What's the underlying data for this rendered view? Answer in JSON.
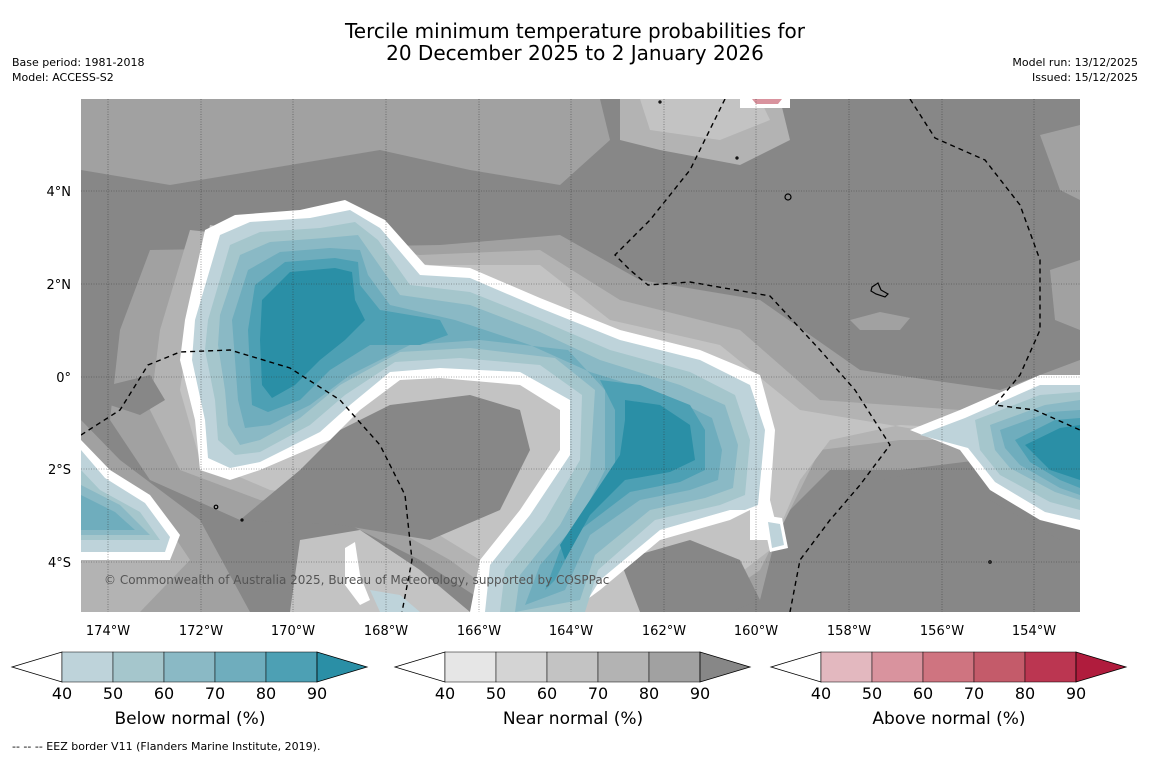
{
  "title": {
    "line1": "Tercile minimum temperature probabilities for",
    "line2": "20 December 2025 to 2 January 2026"
  },
  "meta_left": {
    "base_period": "Base period: 1981-2018",
    "model": "Model: ACCESS-S2"
  },
  "meta_right": {
    "model_run": "Model run: 13/12/2025",
    "issued": "Issued: 15/12/2025"
  },
  "axes": {
    "lon_ticks": [
      "174°W",
      "172°W",
      "170°W",
      "168°W",
      "166°W",
      "164°W",
      "162°W",
      "160°W",
      "158°W",
      "156°W",
      "154°W"
    ],
    "lat_ticks": [
      "4°N",
      "2°N",
      "0°",
      "2°S",
      "4°S"
    ]
  },
  "copyright": "© Commonwealth of Australia 2025, Bureau of Meteorology, supported by COSPPac",
  "colorbars": [
    {
      "label": "Below normal (%)",
      "ticks": [
        "40",
        "50",
        "60",
        "70",
        "80",
        "90"
      ],
      "colors": [
        "#bed3da",
        "#a5c6cc",
        "#8ab9c5",
        "#6fadbd",
        "#4da0b4",
        "#2a8fa6"
      ]
    },
    {
      "label": "Near normal (%)",
      "ticks": [
        "40",
        "50",
        "60",
        "70",
        "80",
        "90"
      ],
      "colors": [
        "#e6e6e6",
        "#d4d4d4",
        "#c3c3c3",
        "#b3b3b3",
        "#a1a1a1",
        "#878787"
      ]
    },
    {
      "label": "Above normal (%)",
      "ticks": [
        "40",
        "50",
        "60",
        "70",
        "80",
        "90"
      ],
      "colors": [
        "#e3b8bf",
        "#d9939e",
        "#cf7480",
        "#c45b6a",
        "#bb3651",
        "#b01c3d"
      ]
    }
  ],
  "footer": "--  --  -- EEZ border V11 (Flanders Marine Institute, 2019)."
}
